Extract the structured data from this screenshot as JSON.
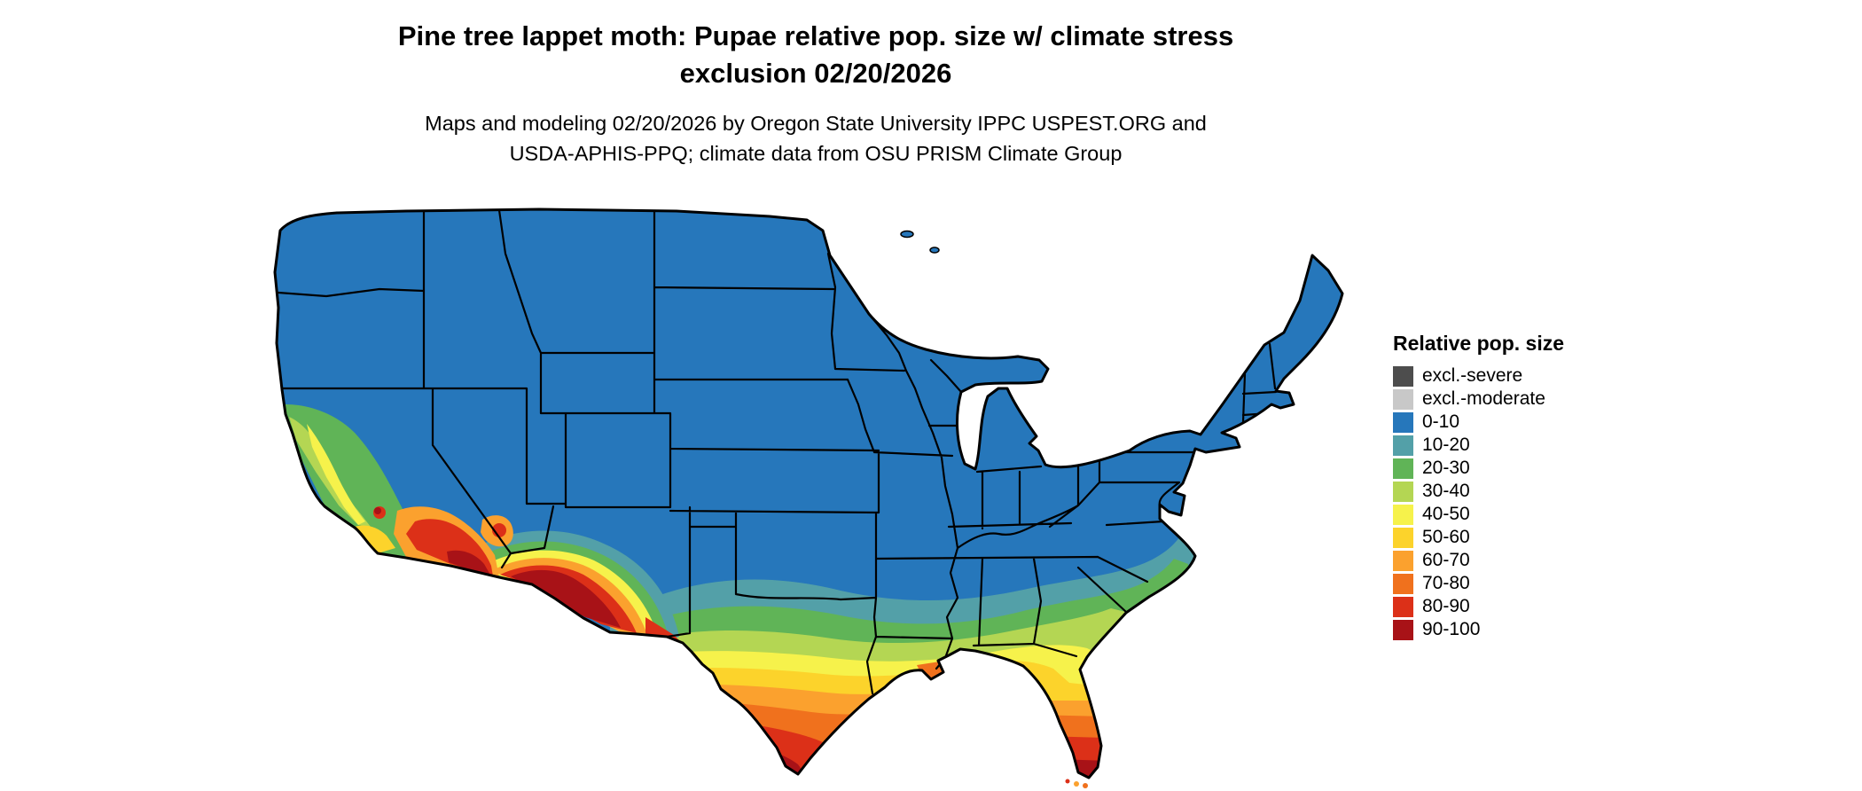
{
  "title": {
    "line1": "Pine tree lappet moth: Pupae relative pop. size w/ climate stress",
    "line2": "exclusion 02/20/2026"
  },
  "subtitle": {
    "line1": "Maps and modeling 02/20/2026 by Oregon State University IPPC USPEST.ORG and",
    "line2": "USDA-APHIS-PPQ; climate data from OSU PRISM Climate Group"
  },
  "legend": {
    "title": "Relative pop. size",
    "items": [
      {
        "key": "exclSevere",
        "label": "excl.-severe",
        "color": "#4d4d4d"
      },
      {
        "key": "exclModerate",
        "label": "excl.-moderate",
        "color": "#c8c8c8"
      },
      {
        "key": "b0",
        "label": "0-10",
        "color": "#2677bb"
      },
      {
        "key": "b10",
        "label": "10-20",
        "color": "#53a0a8"
      },
      {
        "key": "b20",
        "label": "20-30",
        "color": "#60b457"
      },
      {
        "key": "b30",
        "label": "30-40",
        "color": "#b4d653"
      },
      {
        "key": "b40",
        "label": "40-50",
        "color": "#f6f24b"
      },
      {
        "key": "b50",
        "label": "50-60",
        "color": "#fcd32b"
      },
      {
        "key": "b60",
        "label": "60-70",
        "color": "#fba12e"
      },
      {
        "key": "b70",
        "label": "70-80",
        "color": "#f0711d"
      },
      {
        "key": "b80",
        "label": "80-90",
        "color": "#dc3018"
      },
      {
        "key": "b90",
        "label": "90-100",
        "color": "#a81217"
      }
    ]
  }
}
